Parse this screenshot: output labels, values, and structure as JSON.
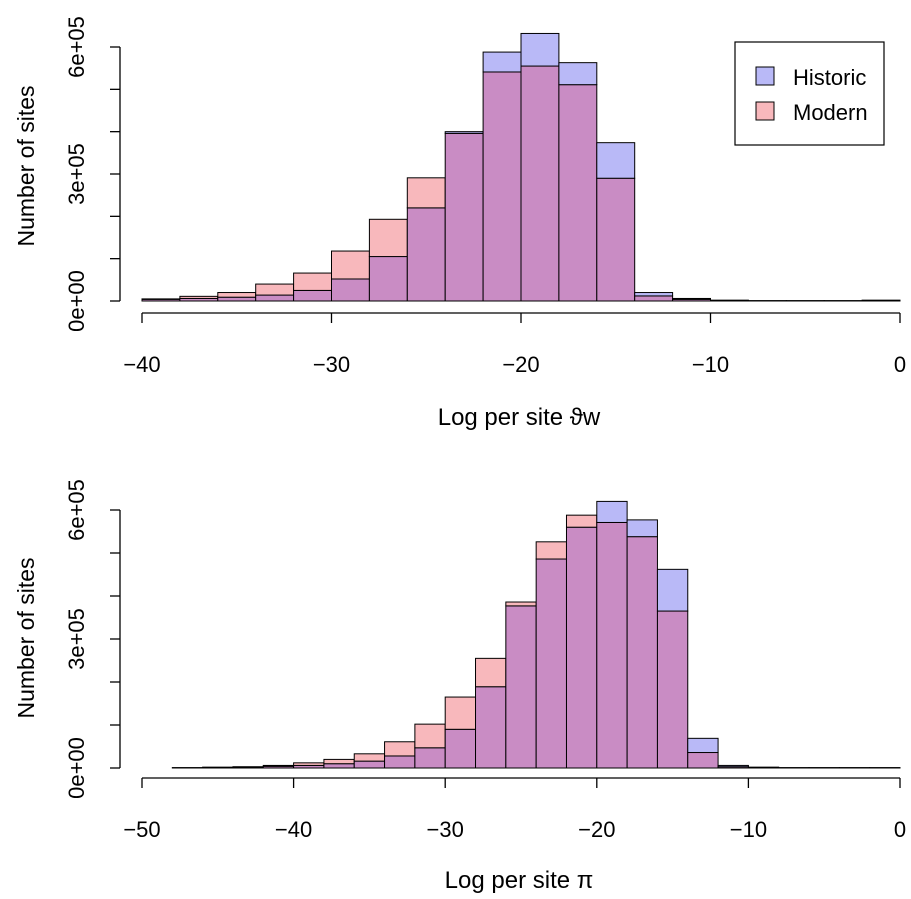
{
  "colors": {
    "historic": "#b9b9f7",
    "modern": "#f8b8bc",
    "overlap": "#c98cc4",
    "stroke": "#000000"
  },
  "legend": {
    "position": "top-right",
    "items": [
      "Historic",
      "Modern"
    ]
  },
  "chart_data": [
    {
      "type": "bar",
      "title": "",
      "xlabel": "Log per site ϑw",
      "ylabel": "Number of sites",
      "xlim": [
        -40,
        0
      ],
      "ylim": [
        0,
        600000
      ],
      "xticks": [
        -40,
        -30,
        -20,
        -10,
        0
      ],
      "xtick_labels": [
        "−40",
        "−30",
        "−20",
        "−10",
        "0"
      ],
      "yticks": [
        0,
        300000,
        600000
      ],
      "ytick_labels": [
        "0e+00",
        "3e+05",
        "6e+05"
      ],
      "bin_width": 2,
      "bin_starts": [
        -40,
        -38,
        -36,
        -34,
        -32,
        -30,
        -28,
        -26,
        -24,
        -22,
        -20,
        -18,
        -16,
        -14,
        -12,
        -10,
        -8,
        -6,
        -4,
        -2
      ],
      "series": [
        {
          "name": "Historic",
          "values": [
            4000,
            6000,
            9000,
            14000,
            25000,
            52000,
            105000,
            220000,
            400000,
            588000,
            632000,
            563000,
            374000,
            20000,
            6000,
            2000,
            1000,
            1000,
            1000,
            2000
          ]
        },
        {
          "name": "Modern",
          "values": [
            5000,
            11000,
            20000,
            40000,
            66000,
            118000,
            193000,
            291000,
            396000,
            541000,
            555000,
            511000,
            290000,
            12000,
            4000,
            1000,
            1000,
            1000,
            1000,
            2000
          ]
        }
      ]
    },
    {
      "type": "bar",
      "title": "",
      "xlabel": "Log per site π",
      "ylabel": "Number of sites",
      "xlim": [
        -50,
        0
      ],
      "ylim": [
        0,
        600000
      ],
      "xticks": [
        -50,
        -40,
        -30,
        -20,
        -10,
        0
      ],
      "xtick_labels": [
        "−50",
        "−40",
        "−30",
        "−20",
        "−10",
        "0"
      ],
      "yticks": [
        0,
        300000,
        600000
      ],
      "ytick_labels": [
        "0e+00",
        "3e+05",
        "6e+05"
      ],
      "bin_width": 2,
      "bin_starts": [
        -48,
        -46,
        -44,
        -42,
        -40,
        -38,
        -36,
        -34,
        -32,
        -30,
        -28,
        -26,
        -24,
        -22,
        -20,
        -18,
        -16,
        -14,
        -12,
        -10,
        -8,
        -6,
        -4,
        -2
      ],
      "series": [
        {
          "name": "Historic",
          "values": [
            1000,
            1000,
            2000,
            4000,
            6000,
            10000,
            16000,
            28000,
            47000,
            90000,
            189000,
            377000,
            486000,
            560000,
            620000,
            577000,
            462000,
            69000,
            6000,
            2000,
            1000,
            1000,
            1000,
            1000
          ]
        },
        {
          "name": "Modern",
          "values": [
            1000,
            2000,
            3000,
            6000,
            12000,
            20000,
            33000,
            61000,
            102000,
            165000,
            255000,
            386000,
            526000,
            588000,
            571000,
            538000,
            365000,
            36000,
            3000,
            1000,
            1000,
            1000,
            1000,
            1000
          ]
        }
      ]
    }
  ]
}
